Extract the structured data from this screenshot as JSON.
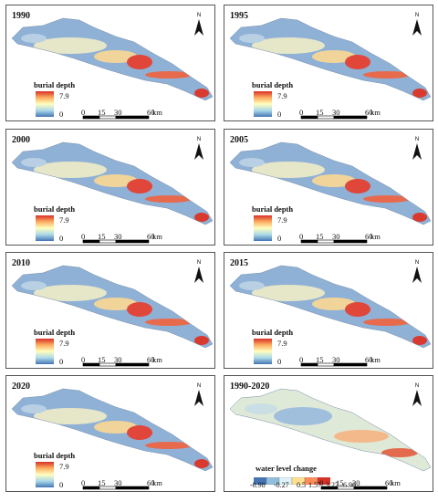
{
  "panels": [
    {
      "title": "1990"
    },
    {
      "title": "1995"
    },
    {
      "title": "2000"
    },
    {
      "title": "2005"
    },
    {
      "title": "2010"
    },
    {
      "title": "2015"
    },
    {
      "title": "2020"
    },
    {
      "title": "1990-2020"
    }
  ],
  "legend": {
    "title": "burial depth",
    "max": "7.9",
    "min": "0",
    "colors": [
      "#d73027",
      "#fdae61",
      "#ffffbf",
      "#abd9e9",
      "#4575b4"
    ]
  },
  "scale": {
    "ticks": [
      "0",
      "15",
      "30",
      "60"
    ],
    "unit": "km"
  },
  "north": {
    "label": "N",
    "icon": "north-arrow-icon"
  },
  "change_legend": {
    "title": "water level change",
    "values": [
      "-0.98",
      "-0.27",
      "0.5",
      "1.57",
      "3.27",
      "6.96"
    ],
    "colors": [
      "#4575b4",
      "#91bfdb",
      "#e0f3f8",
      "#fee090",
      "#fc8d59",
      "#d73027"
    ]
  }
}
